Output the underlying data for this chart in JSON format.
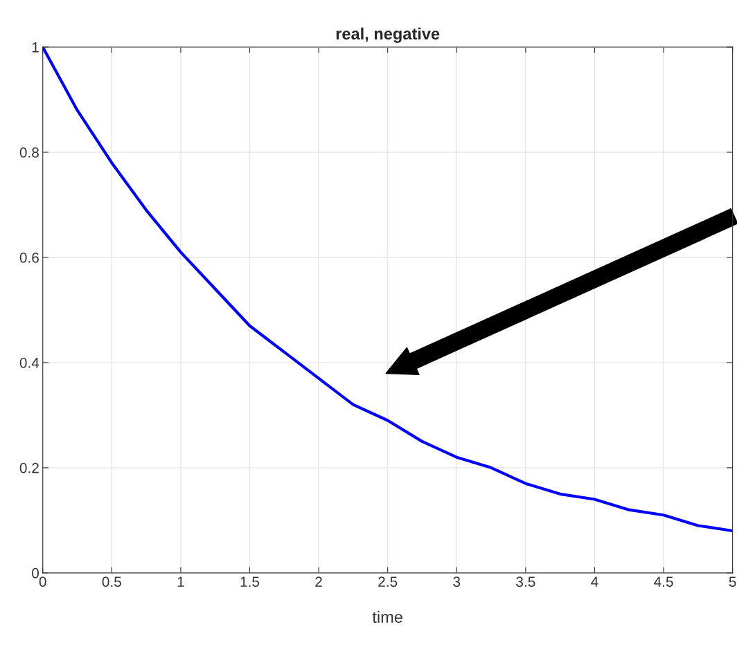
{
  "chart_data": {
    "type": "line",
    "title": "real, negative",
    "xlabel": "time",
    "x": [
      0,
      0.25,
      0.5,
      0.75,
      1,
      1.25,
      1.5,
      1.75,
      2,
      2.25,
      2.5,
      2.75,
      3,
      3.25,
      3.5,
      3.75,
      4,
      4.25,
      4.5,
      4.75,
      5
    ],
    "series": [
      {
        "color": "#0000ff",
        "values": [
          1,
          0.88,
          0.78,
          0.69,
          0.61,
          0.54,
          0.47,
          0.42,
          0.37,
          0.32,
          0.29,
          0.25,
          0.22,
          0.2,
          0.17,
          0.15,
          0.14,
          0.12,
          0.11,
          0.09,
          0.08
        ]
      }
    ],
    "xlim": [
      0,
      5
    ],
    "xticks": [
      0,
      0.5,
      1,
      1.5,
      2,
      2.5,
      3,
      3.5,
      4,
      4.5,
      5
    ],
    "ylim": [
      0,
      1
    ],
    "yticks": [
      0,
      0.2,
      0.4,
      0.6,
      0.8,
      1
    ],
    "grid": true,
    "marker": "none",
    "line_style": "solid"
  }
}
